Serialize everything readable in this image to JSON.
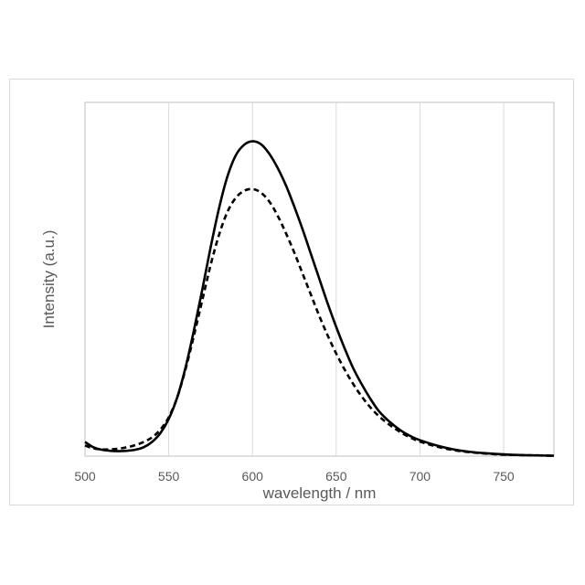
{
  "chart_data": {
    "type": "line",
    "title": "",
    "xlabel": "wavelength / nm",
    "ylabel": "Intensity (a.u.)",
    "xlim": [
      500,
      780
    ],
    "ylim": [
      0,
      1
    ],
    "x_ticks": [
      500,
      550,
      600,
      650,
      700,
      750
    ],
    "y_ticks_shown": false,
    "grid": "vertical",
    "legend": "none",
    "series": [
      {
        "style": "solid",
        "color": "#000000",
        "x": [
          500,
          505,
          510,
          515,
          520,
          525,
          530,
          535,
          540,
          545,
          550,
          555,
          560,
          565,
          570,
          575,
          580,
          585,
          590,
          595,
          600,
          605,
          610,
          615,
          620,
          625,
          630,
          635,
          640,
          645,
          650,
          655,
          660,
          665,
          670,
          675,
          680,
          685,
          690,
          695,
          700,
          710,
          720,
          730,
          740,
          750,
          760,
          770,
          780
        ],
        "y": [
          0.04,
          0.025,
          0.018,
          0.015,
          0.014,
          0.015,
          0.018,
          0.025,
          0.04,
          0.065,
          0.105,
          0.165,
          0.25,
          0.355,
          0.47,
          0.59,
          0.7,
          0.79,
          0.85,
          0.88,
          0.89,
          0.882,
          0.855,
          0.815,
          0.765,
          0.705,
          0.64,
          0.57,
          0.5,
          0.43,
          0.365,
          0.305,
          0.25,
          0.205,
          0.165,
          0.13,
          0.105,
          0.085,
          0.068,
          0.055,
          0.045,
          0.03,
          0.019,
          0.012,
          0.008,
          0.005,
          0.003,
          0.002,
          0.001
        ]
      },
      {
        "style": "dashed",
        "color": "#000000",
        "x": [
          500,
          505,
          510,
          515,
          520,
          525,
          530,
          535,
          540,
          545,
          550,
          555,
          560,
          565,
          570,
          575,
          580,
          585,
          590,
          595,
          600,
          605,
          610,
          615,
          620,
          625,
          630,
          635,
          640,
          645,
          650,
          655,
          660,
          665,
          670,
          675,
          680,
          685,
          690,
          695,
          700,
          710,
          720,
          730,
          740,
          750,
          760,
          770,
          780
        ],
        "y": [
          0.03,
          0.022,
          0.019,
          0.019,
          0.021,
          0.025,
          0.031,
          0.04,
          0.053,
          0.075,
          0.11,
          0.165,
          0.245,
          0.34,
          0.44,
          0.54,
          0.625,
          0.69,
          0.73,
          0.75,
          0.755,
          0.745,
          0.72,
          0.68,
          0.63,
          0.575,
          0.515,
          0.455,
          0.395,
          0.34,
          0.29,
          0.245,
          0.205,
          0.17,
          0.14,
          0.115,
          0.095,
          0.078,
          0.063,
          0.051,
          0.041,
          0.027,
          0.017,
          0.011,
          0.007,
          0.004,
          0.003,
          0.002,
          0.001
        ]
      }
    ]
  }
}
